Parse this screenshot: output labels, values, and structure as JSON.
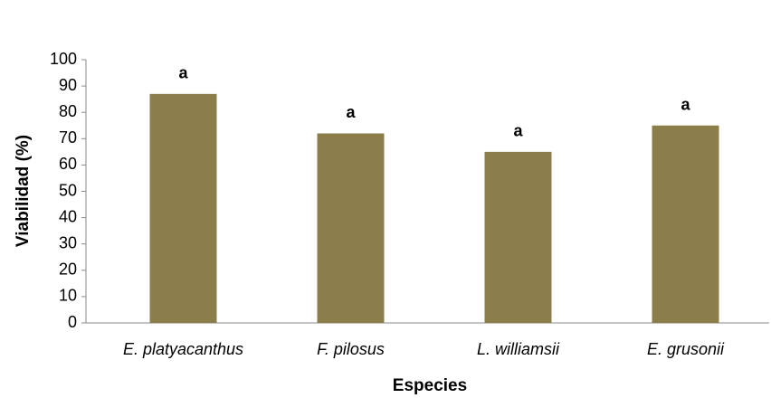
{
  "chart_data": {
    "type": "bar",
    "xlabel": "Especies",
    "ylabel": "Viabilidad (%)",
    "categories": [
      "E. platyacanthus",
      "F. pilosus",
      "L. williamsii",
      "E. grusonii"
    ],
    "values": [
      87,
      72,
      65,
      75
    ],
    "annotations": [
      "a",
      "a",
      "a",
      "a"
    ],
    "color": "#8b7e4b",
    "ylim": [
      0,
      100
    ],
    "yticks": [
      0,
      10,
      20,
      30,
      40,
      50,
      60,
      70,
      80,
      90,
      100
    ],
    "grid": false
  }
}
